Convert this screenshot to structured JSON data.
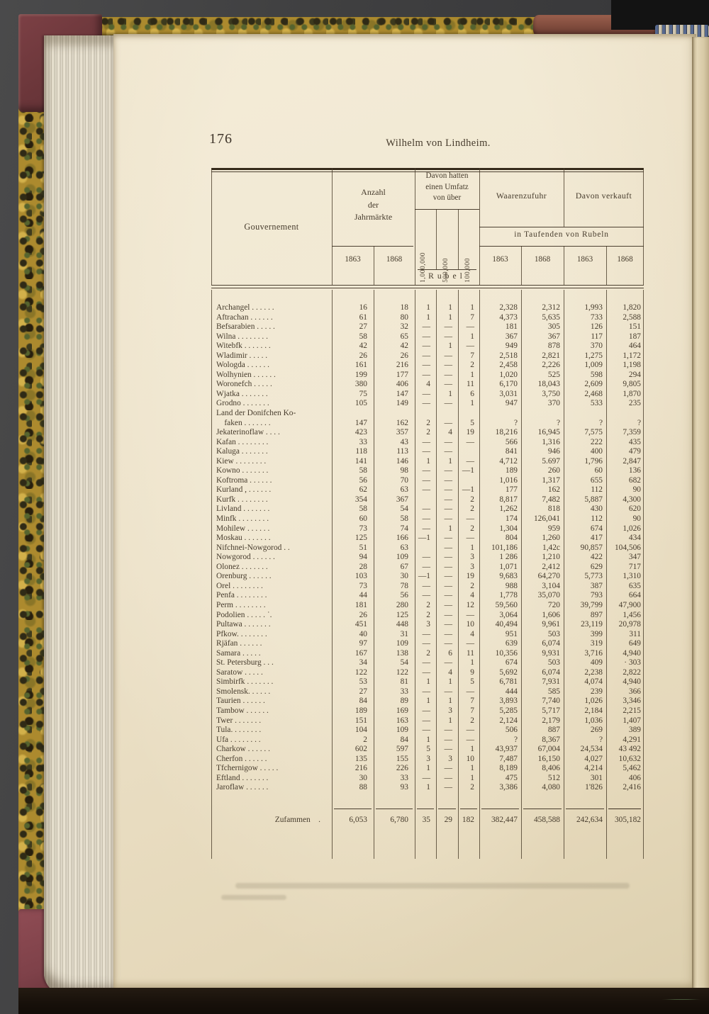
{
  "page": {
    "number": "176",
    "running_title": "Wilhelm von Lindheim."
  },
  "table": {
    "header": {
      "gouvernement": "Gouvernement",
      "anzahl": "Anzahl\nder\nJahrmärkte",
      "umsatz": "Davon hatten\neinen Umfatz\nvon über",
      "umsatz_cols": [
        "1,000,000",
        "500,000",
        "100,000"
      ],
      "rubel": "Rubel",
      "waarenzufuhr": "Waarenzufuhr",
      "verkauft": "Davon verkauft",
      "unit": "in Taufenden von Rubeln",
      "years": [
        "1863",
        "1868",
        "1863",
        "1868",
        "1863",
        "1868"
      ]
    },
    "rows": [
      {
        "n": "Archangel .  .  .  .  .  .",
        "v": [
          "16",
          "18",
          "1",
          "1",
          "1",
          "2,328",
          "2,312",
          "1,993",
          "1,820"
        ]
      },
      {
        "n": "Aftrachan  .  .  .  .  .  .",
        "v": [
          "61",
          "80",
          "1",
          "1",
          "7",
          "4,373",
          "5,635",
          "733",
          "2,588"
        ]
      },
      {
        "n": "Befsarabien .  .  .  .  .",
        "v": [
          "27",
          "32",
          "—",
          "—",
          "—",
          "181",
          "305",
          "126",
          "151"
        ]
      },
      {
        "n": "Wilna .  .  .  .  .  .  .  .",
        "v": [
          "58",
          "65",
          "—",
          "—",
          "1",
          "367",
          "367",
          "117",
          "187"
        ]
      },
      {
        "n": "Witebfk .  .  .  .  .  .  .",
        "v": [
          "42",
          "42",
          "—",
          "1",
          "—",
          "949",
          "878",
          "370",
          "464"
        ]
      },
      {
        "n": "Wladimir  .  .    .  .  .",
        "v": [
          "26",
          "26",
          "—",
          "—",
          "7",
          "2,518",
          "2,821",
          "1,275",
          "1,172"
        ]
      },
      {
        "n": "Wologda  .  .  .  .  .  .",
        "v": [
          "161",
          "216",
          "—",
          "—",
          "2",
          "2,458",
          "2,226",
          "1,009",
          "1,198"
        ]
      },
      {
        "n": "Wolhynien .  .  .  .  .  .",
        "v": [
          "199",
          "177",
          "—",
          "—",
          "1",
          "1,020",
          "525",
          "598",
          "294"
        ]
      },
      {
        "n": "Woronefch  .  .  .  .  .",
        "v": [
          "380",
          "406",
          "4",
          "—",
          "11",
          "6,170",
          "18,043",
          "2,609",
          "9,805"
        ]
      },
      {
        "n": "Wjatka  .  .  .  .  .  .  .",
        "v": [
          "75",
          "147",
          "—",
          "1",
          "6",
          "3,031",
          "3,750",
          "2,468",
          "1,870"
        ]
      },
      {
        "n": "Grodno .  .   .  .  .  .  .",
        "v": [
          "105",
          "149",
          "—",
          "—",
          "1",
          "947",
          "370",
          "533",
          "235"
        ]
      },
      {
        "n": "Land der Donifchen Ko-\n  faken .  .  .  .  .  .  .",
        "v": [
          "147",
          "162",
          "2",
          "—",
          "5",
          "?",
          "?",
          "?",
          "?"
        ]
      },
      {
        "n": "Jekaterinoflaw    .  .  .  .",
        "v": [
          "423",
          "357",
          "2",
          "4",
          "19",
          "18,216",
          "16,945",
          "7,575",
          "7,359"
        ]
      },
      {
        "n": "Kafan .  .  .  .  .  .  .  .",
        "v": [
          "33",
          "43",
          "—",
          "—",
          "—",
          "566",
          "1,316",
          "222",
          "435"
        ]
      },
      {
        "n": "Kaluga  .  .  .  .  .  .  .",
        "v": [
          "118",
          "113",
          "—",
          "—",
          "",
          "841",
          "946",
          "400",
          "479"
        ]
      },
      {
        "n": "Kiew  .  .  .  .  .  .  .  .",
        "v": [
          "141",
          "146",
          "1",
          "1",
          "—",
          "4,712",
          "5.697",
          "1,796",
          "2,847"
        ]
      },
      {
        "n": "Kowno  .  .  .  .  .  .  .",
        "v": [
          "58",
          "98",
          "—",
          "—",
          "—1",
          "189",
          "260",
          "60",
          "136"
        ]
      },
      {
        "n": "Koftroma  .  .  .  .  .  .",
        "v": [
          "56",
          "70",
          "—",
          "—",
          "",
          "1,016",
          "1,317",
          "655",
          "682"
        ]
      },
      {
        "n": "Kurland ,  .  .  .  .  .  .",
        "v": [
          "62",
          "63",
          "—",
          "—",
          "—1",
          "177",
          "162",
          "112",
          "90"
        ]
      },
      {
        "n": "Kurfk .  .  .  .  .  .  .  .",
        "v": [
          "354",
          "367",
          "",
          "—",
          "2",
          "8,817",
          "7,482",
          "5,887",
          "4,300"
        ]
      },
      {
        "n": "Livland .  .  .  .  .  .  .",
        "v": [
          "58",
          "54",
          "—",
          "—",
          "2",
          "1,262",
          "818",
          "430",
          "620"
        ]
      },
      {
        "n": "Minfk .  .  .  .  .  .  .  .",
        "v": [
          "60",
          "58",
          "—",
          "—",
          "—",
          "174",
          "126,041",
          "112",
          "90"
        ]
      },
      {
        "n": "Mohilew  .  .  .  .  .  .",
        "v": [
          "73",
          "74",
          "—",
          "1",
          "2",
          "1,304",
          "959",
          "674",
          "1,026"
        ]
      },
      {
        "n": "Moskau .  .  .  .  .  .  .",
        "v": [
          "125",
          "166",
          "—1",
          "—",
          "—",
          "804",
          "1,260",
          "417",
          "434"
        ]
      },
      {
        "n": "Nifchnei-Nowgorod   .  .",
        "v": [
          "51",
          "63",
          "",
          "—",
          "1",
          "101,186",
          "1,42c",
          "90,857",
          "104,506"
        ]
      },
      {
        "n": "Nowgorod .  .  .  .  .  .",
        "v": [
          "94",
          "109",
          "—",
          "—",
          "3",
          "1 286",
          "1,210",
          "422",
          "347"
        ]
      },
      {
        "n": "Olonez  .  .  .  .  .  .  .",
        "v": [
          "28",
          "67",
          "—",
          "—",
          "3",
          "1,071",
          "2,412",
          "629",
          "717"
        ]
      },
      {
        "n": "Orenburg .  .  .  .  .  .",
        "v": [
          "103",
          "30",
          "—1",
          "—",
          "19",
          "9,683",
          "64,270",
          "5,773",
          "1,310"
        ]
      },
      {
        "n": "Orel  .  .  .  .  .  .  .  .",
        "v": [
          "73",
          "78",
          "—",
          "—",
          "2",
          "988",
          "3,104",
          "387",
          "635"
        ]
      },
      {
        "n": "Penfa .  .  .  .  .  .  .  .",
        "v": [
          "44",
          "56",
          "—",
          "—",
          "4",
          "1,778",
          "35,070",
          "793",
          "664"
        ]
      },
      {
        "n": "Perm .  .  .  .  .  .  .  .",
        "v": [
          "181",
          "280",
          "2",
          "—",
          "12",
          "59,560",
          "720",
          "39,799",
          "47,900"
        ]
      },
      {
        "n": "Podolien  .  .  .  .  .  ˙.",
        "v": [
          "26",
          "125",
          "2",
          "—",
          "—",
          "3,064",
          "1,606",
          "897",
          "1,456"
        ]
      },
      {
        "n": "Pultawa .  .  .  .  .  .  .",
        "v": [
          "451",
          "448",
          "3",
          "—",
          "10",
          "40,494",
          "9,961",
          "23,119",
          "20,978"
        ]
      },
      {
        "n": "Pfkow.  .  .  .  .  .  .  .",
        "v": [
          "40",
          "31",
          "—",
          "—",
          "4",
          "951",
          "503",
          "399",
          "311"
        ]
      },
      {
        "n": "Rjäfan .   .   .   .   .   .",
        "v": [
          "97",
          "109",
          "—",
          "—",
          "—",
          "639",
          "6,074",
          "319",
          "649"
        ]
      },
      {
        "n": "Samara    .   .   .   .   .",
        "v": [
          "167",
          "138",
          "2",
          "6",
          "11",
          "10,356",
          "9,931",
          "3,716",
          "4,940"
        ]
      },
      {
        "n": "St. Petersburg    .   .   .",
        "v": [
          "34",
          "54",
          "—",
          "—",
          "1",
          "674",
          "503",
          "409",
          "· 303"
        ]
      },
      {
        "n": "Saratow    .   .   .   .   .",
        "v": [
          "122",
          "122",
          "—",
          "4",
          "9",
          "5,692",
          "6,074",
          "2,238",
          "2,822"
        ]
      },
      {
        "n": "Simbirfk .  .  .  .  .  .  .",
        "v": [
          "53",
          "81",
          "1",
          "1",
          "5",
          "6,781",
          "7,931",
          "4,074",
          "4,940"
        ]
      },
      {
        "n": "Smolensk.  .  .  .  .  .",
        "v": [
          "27",
          "33",
          "—",
          "—",
          "—",
          "444",
          "585",
          "239",
          "366"
        ]
      },
      {
        "n": "Taurien  .  .  .  .  .  .",
        "v": [
          "84",
          "89",
          "1",
          "1",
          "7",
          "3,893",
          "7,740",
          "1,026",
          "3,346"
        ]
      },
      {
        "n": "Tambow .  .  .  .  .  .",
        "v": [
          "189",
          "169",
          "—",
          "3",
          "7",
          "5,285",
          "5,717",
          "2,184",
          "2,215"
        ]
      },
      {
        "n": "Twer  .  .  .  .  .  .  .",
        "v": [
          "151",
          "163",
          "—",
          "1",
          "2",
          "2,124",
          "2,179",
          "1,036",
          "1,407"
        ]
      },
      {
        "n": "Tula.  .  .  .  .  .  .  .",
        "v": [
          "104",
          "109",
          "—",
          "—",
          "—",
          "506",
          "887",
          "269",
          "389"
        ]
      },
      {
        "n": "Ufa .  .  .  .  .  .  .  .",
        "v": [
          "2",
          "84",
          "1",
          "—",
          "—",
          "?",
          "8,367",
          "?",
          "4,291"
        ]
      },
      {
        "n": "Charkow  .  .  .  .  .  .",
        "v": [
          "602",
          "597",
          "5",
          "—",
          "1",
          "43,937",
          "67,004",
          "24,534",
          "43 492"
        ]
      },
      {
        "n": "Cherfon   .  .  .  .  .  .",
        "v": [
          "135",
          "155",
          "3",
          "3",
          "10",
          "7,487",
          "16,150",
          "4,027",
          "10,632"
        ]
      },
      {
        "n": "Tfchernigow .  .  .  .  .",
        "v": [
          "216",
          "226",
          "1",
          "—",
          "1",
          "8,189",
          "8,406",
          "4,214",
          "5,462"
        ]
      },
      {
        "n": "Eftland .  .  .  .  .  .  .",
        "v": [
          "30",
          "33",
          "—",
          "—",
          "1",
          "475",
          "512",
          "301",
          "406"
        ]
      },
      {
        "n": "Jaroflaw  .  .  .  .  .  .",
        "v": [
          "88",
          "93",
          "1",
          "—",
          "2",
          "3,386",
          "4,080",
          "1'826",
          "2,416"
        ]
      }
    ],
    "total": {
      "label": "Zufammen  .",
      "values": [
        "6,053",
        "6,780",
        "35",
        "29",
        "182",
        "382,447",
        "458,588",
        "242,634",
        "305,182"
      ]
    }
  },
  "colors": {
    "paper": "#ece1c8",
    "ink": "#473c2d",
    "cover_marble_ochre": "#ac8a2e",
    "leather_red": "#7c4045",
    "headband_blue": "#56688e",
    "background": "#3c3c3e"
  }
}
